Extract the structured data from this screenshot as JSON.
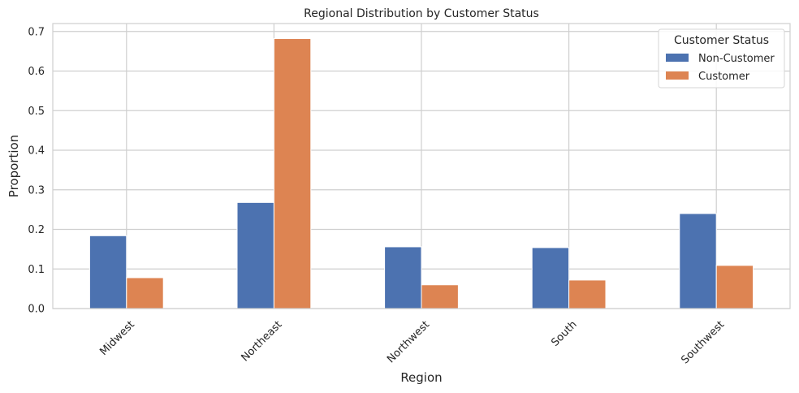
{
  "chart_data": {
    "type": "bar",
    "title": "Regional Distribution by Customer Status",
    "xlabel": "Region",
    "ylabel": "Proportion",
    "categories": [
      "Midwest",
      "Northeast",
      "Northwest",
      "South",
      "Southwest"
    ],
    "series": [
      {
        "name": "Non-Customer",
        "color": "#4c72b0",
        "values": [
          0.184,
          0.268,
          0.156,
          0.154,
          0.24
        ]
      },
      {
        "name": "Customer",
        "color": "#dd8452",
        "values": [
          0.078,
          0.682,
          0.06,
          0.072,
          0.109
        ]
      }
    ],
    "ylim": [
      0,
      0.72
    ],
    "yticks": [
      "0.0",
      "0.1",
      "0.2",
      "0.3",
      "0.4",
      "0.5",
      "0.6",
      "0.7"
    ],
    "grid": true,
    "legend": {
      "title": "Customer Status",
      "placement": "top-right"
    }
  }
}
